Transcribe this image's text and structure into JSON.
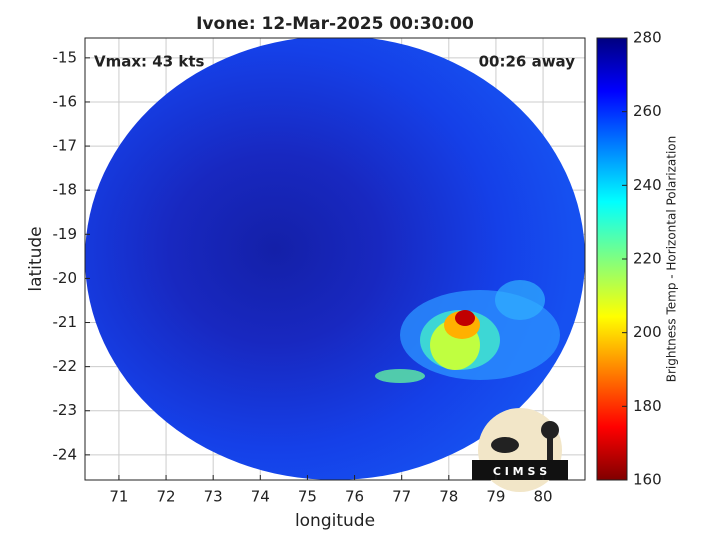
{
  "map": {
    "type": "swath",
    "title": "Ivone: 12-Mar-2025 00:30:00",
    "annotations": {
      "vmax": "Vmax: 43 kts",
      "away": "00:26 away"
    },
    "x_label": "longitude",
    "y_label": "latitude",
    "xlim": [
      70.28,
      80.89
    ],
    "ylim": [
      -24.57,
      -14.55
    ],
    "xticks": [
      71,
      72,
      73,
      74,
      75,
      76,
      77,
      78,
      79,
      80
    ],
    "yticks": [
      -15,
      -16,
      -17,
      -18,
      -19,
      -20,
      -21,
      -22,
      -23,
      -24
    ],
    "grid": true,
    "colorbar": {
      "label": "Brightness Temp - Horizontal Polarization",
      "lim": [
        160,
        280
      ],
      "ticks": [
        160,
        180,
        200,
        220,
        240,
        260,
        280
      ]
    },
    "logo": "C I M S S"
  }
}
